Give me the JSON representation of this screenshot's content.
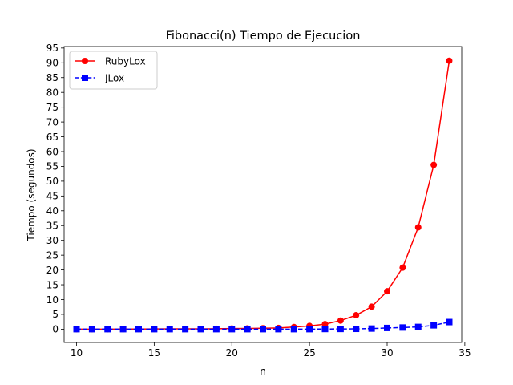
{
  "chart_data": {
    "type": "line",
    "title": "Fibonacci(n) Tiempo de Ejecucion",
    "xlabel": "n",
    "ylabel": "Tiempo (segundos)",
    "xlim": [
      9.2,
      34.8
    ],
    "ylim": [
      -4.5,
      95.5
    ],
    "xticks": [
      10,
      15,
      20,
      25,
      30,
      35
    ],
    "yticks": [
      0,
      5,
      10,
      15,
      20,
      25,
      30,
      35,
      40,
      45,
      50,
      55,
      60,
      65,
      70,
      75,
      80,
      85,
      90,
      95
    ],
    "legend_position": "upper-left",
    "grid": false,
    "x": [
      10,
      11,
      12,
      13,
      14,
      15,
      16,
      17,
      18,
      19,
      20,
      21,
      22,
      23,
      24,
      25,
      26,
      27,
      28,
      29,
      30,
      31,
      32,
      33,
      34
    ],
    "series": [
      {
        "name": "RubyLox",
        "color": "#ff0000",
        "marker": "circle",
        "linestyle": "solid",
        "values": [
          0.01,
          0.01,
          0.02,
          0.03,
          0.05,
          0.07,
          0.1,
          0.1,
          0.1,
          0.15,
          0.2,
          0.25,
          0.3,
          0.4,
          0.7,
          1.1,
          1.7,
          2.9,
          4.7,
          7.6,
          12.8,
          20.8,
          34.4,
          55.5,
          90.7
        ]
      },
      {
        "name": "JLox",
        "color": "#0000ff",
        "marker": "square",
        "linestyle": "dashed",
        "values": [
          0.0,
          0.0,
          0.0,
          0.0,
          0.0,
          0.0,
          0.0,
          0.0,
          0.0,
          0.0,
          0.0,
          0.0,
          0.0,
          0.0,
          0.0,
          0.0,
          0.05,
          0.07,
          0.1,
          0.2,
          0.4,
          0.55,
          0.75,
          1.3,
          2.4
        ]
      }
    ]
  }
}
